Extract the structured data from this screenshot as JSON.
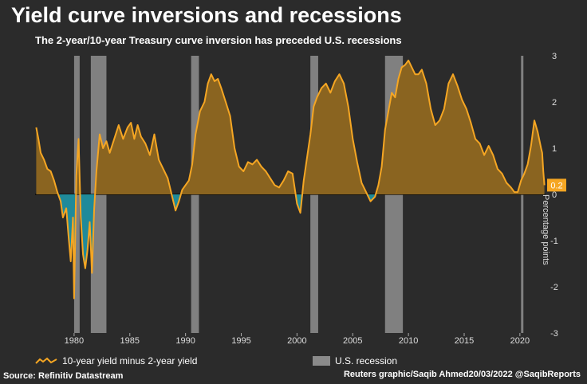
{
  "header": {
    "title": "Yield curve inversions and recessions",
    "subtitle": "The 2-year/10-year Treasury curve inversion has preceded U.S. recessions"
  },
  "legend": {
    "line_label": "10-year yield minus 2-year yield",
    "recession_label": "U.S. recession"
  },
  "footer": {
    "source": "Source: Refinitiv Datastream",
    "credit": "Reuters graphic/Saqib Ahmed20/03/2022 @SaqibReports"
  },
  "colors": {
    "background": "#2b2b2b",
    "line": "#f5a623",
    "positive_fill": "#8a6420",
    "negative_fill": "#1f8a9a",
    "recession": "#8a8a8a",
    "latest_badge": "#f5a623"
  },
  "chart_data": {
    "type": "area",
    "title": "Yield curve inversions and recessions",
    "subtitle": "The 2-year/10-year Treasury curve inversion has preceded U.S. recessions",
    "ylabel": "Percentage points",
    "ylim": [
      -3,
      3
    ],
    "yticks": [
      "3",
      "2",
      "1",
      "0",
      "-1",
      "-2",
      "-3"
    ],
    "xlim": [
      1976.5,
      2022.3
    ],
    "xticks": [
      "1980",
      "1985",
      "1990",
      "1995",
      "2000",
      "2005",
      "2010",
      "2015",
      "2020"
    ],
    "latest_label": "0.2",
    "series": [
      {
        "name": "10-year yield minus 2-year yield",
        "x": [
          1976.6,
          1976.8,
          1977.0,
          1977.3,
          1977.6,
          1977.9,
          1978.2,
          1978.5,
          1978.8,
          1979.0,
          1979.3,
          1979.5,
          1979.7,
          1979.9,
          1980.0,
          1980.2,
          1980.4,
          1980.6,
          1980.8,
          1981.0,
          1981.2,
          1981.4,
          1981.6,
          1981.8,
          1982.0,
          1982.3,
          1982.6,
          1982.9,
          1983.2,
          1983.6,
          1984.0,
          1984.4,
          1984.8,
          1985.1,
          1985.4,
          1985.7,
          1986.0,
          1986.4,
          1986.8,
          1987.2,
          1987.6,
          1988.0,
          1988.4,
          1988.8,
          1989.1,
          1989.4,
          1989.7,
          1990.0,
          1990.3,
          1990.6,
          1990.9,
          1991.3,
          1991.7,
          1992.0,
          1992.3,
          1992.6,
          1992.9,
          1993.2,
          1993.6,
          1994.0,
          1994.4,
          1994.8,
          1995.2,
          1995.6,
          1996.0,
          1996.4,
          1996.8,
          1997.2,
          1997.6,
          1998.0,
          1998.4,
          1998.8,
          1999.2,
          1999.6,
          2000.0,
          2000.3,
          2000.6,
          2000.9,
          2001.2,
          2001.5,
          2001.8,
          2002.2,
          2002.6,
          2003.0,
          2003.4,
          2003.8,
          2004.2,
          2004.6,
          2005.0,
          2005.4,
          2005.8,
          2006.2,
          2006.6,
          2007.0,
          2007.3,
          2007.6,
          2007.9,
          2008.2,
          2008.5,
          2008.8,
          2009.1,
          2009.4,
          2009.7,
          2010.0,
          2010.3,
          2010.6,
          2010.9,
          2011.2,
          2011.6,
          2012.0,
          2012.4,
          2012.8,
          2013.2,
          2013.6,
          2014.0,
          2014.4,
          2014.8,
          2015.2,
          2015.6,
          2016.0,
          2016.4,
          2016.8,
          2017.2,
          2017.6,
          2018.0,
          2018.4,
          2018.8,
          2019.2,
          2019.5,
          2019.8,
          2020.1,
          2020.4,
          2020.7,
          2021.0,
          2021.3,
          2021.6,
          2021.9,
          2022.0,
          2022.1,
          2022.2
        ],
        "values": [
          1.45,
          1.2,
          0.9,
          0.75,
          0.55,
          0.5,
          0.3,
          0.05,
          -0.15,
          -0.5,
          -0.3,
          -0.9,
          -1.45,
          -0.5,
          -2.25,
          0.4,
          1.2,
          -0.5,
          -1.3,
          -1.6,
          -1.2,
          -0.6,
          -1.7,
          -0.3,
          0.5,
          1.3,
          1.0,
          1.15,
          0.9,
          1.2,
          1.5,
          1.2,
          1.45,
          1.55,
          1.2,
          1.5,
          1.25,
          1.1,
          0.85,
          1.3,
          0.75,
          0.55,
          0.35,
          -0.05,
          -0.35,
          -0.15,
          0.1,
          0.2,
          0.3,
          0.65,
          1.3,
          1.8,
          2.0,
          2.4,
          2.6,
          2.45,
          2.5,
          2.3,
          2.0,
          1.7,
          1.0,
          0.6,
          0.5,
          0.7,
          0.65,
          0.75,
          0.6,
          0.5,
          0.35,
          0.2,
          0.15,
          0.3,
          0.5,
          0.45,
          -0.2,
          -0.4,
          0.3,
          0.8,
          1.3,
          1.9,
          2.1,
          2.3,
          2.4,
          2.2,
          2.45,
          2.6,
          2.4,
          1.9,
          1.2,
          0.7,
          0.25,
          0.05,
          -0.15,
          -0.05,
          0.2,
          0.6,
          1.4,
          1.8,
          2.2,
          2.1,
          2.5,
          2.75,
          2.8,
          2.9,
          2.75,
          2.6,
          2.6,
          2.7,
          2.4,
          1.85,
          1.5,
          1.6,
          1.85,
          2.4,
          2.6,
          2.35,
          2.05,
          1.85,
          1.55,
          1.2,
          1.1,
          0.85,
          1.05,
          0.85,
          0.55,
          0.45,
          0.25,
          0.15,
          0.05,
          0.05,
          0.3,
          0.45,
          0.65,
          1.05,
          1.6,
          1.35,
          1.0,
          0.9,
          0.5,
          0.2
        ],
        "color": "#f5a623"
      }
    ],
    "recessions": [
      [
        1980.0,
        1980.5
      ],
      [
        1981.5,
        1982.9
      ],
      [
        1990.5,
        1991.2
      ],
      [
        2001.2,
        2001.9
      ],
      [
        2007.9,
        2009.5
      ],
      [
        2020.1,
        2020.3
      ]
    ]
  }
}
